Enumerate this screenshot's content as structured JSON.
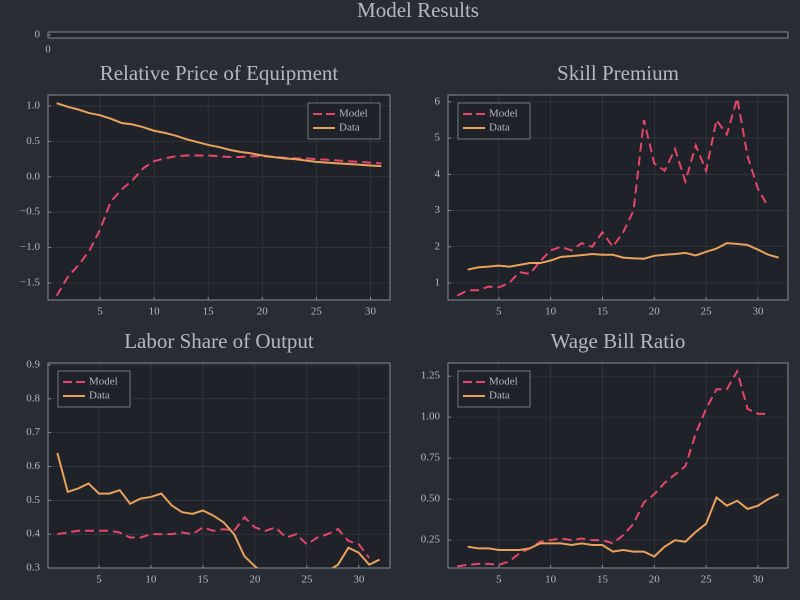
{
  "chart_data": [
    {
      "type": "line",
      "title": "Model Results",
      "xlim": [
        0,
        1
      ],
      "ylim": [
        -1,
        1
      ],
      "xticks": [
        0
      ],
      "yticks": [
        0
      ],
      "grid": false,
      "series": []
    },
    {
      "type": "line",
      "title": "Relative Price of Equipment",
      "legend": "upper right",
      "grid": true,
      "x": [
        1,
        2,
        3,
        4,
        5,
        6,
        7,
        8,
        9,
        10,
        11,
        12,
        13,
        14,
        15,
        16,
        17,
        18,
        19,
        20,
        21,
        22,
        23,
        24,
        25,
        26,
        27,
        28,
        29,
        30,
        31
      ],
      "xlim": [
        0.2,
        31.8
      ],
      "xticks": [
        5,
        10,
        15,
        20,
        25,
        30
      ],
      "ylim": [
        -1.74,
        1.155
      ],
      "yticks": [
        {
          "value": 1,
          "label": "1.0"
        },
        0.5,
        {
          "value": 0,
          "label": "0.0"
        },
        {
          "value": -0.5,
          "label": "−0.5"
        },
        {
          "value": -1,
          "label": "−1.0"
        },
        {
          "value": -1.5,
          "label": "−1.5"
        }
      ],
      "series": [
        {
          "name": "Model",
          "color": "#e5466a",
          "linestyle": "dashed",
          "values": [
            -1.68,
            -1.42,
            -1.25,
            -1.05,
            -0.75,
            -0.35,
            -0.18,
            -0.05,
            0.12,
            0.22,
            0.26,
            0.29,
            0.3,
            0.3,
            0.3,
            0.29,
            0.28,
            0.28,
            0.29,
            0.29,
            0.28,
            0.27,
            0.26,
            0.26,
            0.25,
            0.24,
            0.23,
            0.22,
            0.21,
            0.2,
            0.19
          ]
        },
        {
          "name": "Data",
          "color": "#e9a25c",
          "linestyle": "solid",
          "values": [
            1.04,
            0.99,
            0.95,
            0.9,
            0.87,
            0.82,
            0.76,
            0.74,
            0.7,
            0.65,
            0.62,
            0.58,
            0.53,
            0.49,
            0.45,
            0.42,
            0.38,
            0.35,
            0.33,
            0.3,
            0.28,
            0.26,
            0.25,
            0.23,
            0.21,
            0.2,
            0.19,
            0.18,
            0.17,
            0.16,
            0.15
          ]
        }
      ]
    },
    {
      "type": "line",
      "title": "Skill Premium",
      "legend": "upper left",
      "grid": true,
      "x": [
        1,
        2,
        3,
        4,
        5,
        6,
        7,
        8,
        9,
        10,
        11,
        12,
        13,
        14,
        15,
        16,
        17,
        18,
        19,
        20,
        21,
        22,
        23,
        24,
        25,
        26,
        27,
        28,
        29,
        30,
        31,
        32
      ],
      "xlim": [
        0.1,
        32.9
      ],
      "xticks": [
        5,
        10,
        15,
        20,
        25,
        30
      ],
      "ylim": [
        0.53,
        6.19
      ],
      "yticks": [
        1,
        2,
        3,
        4,
        5,
        6
      ],
      "series": [
        {
          "name": "Model",
          "color": "#e5466a",
          "linestyle": "dashed",
          "values": [
            0.65,
            0.8,
            0.8,
            0.9,
            0.88,
            1.0,
            1.3,
            1.25,
            1.6,
            1.9,
            2.0,
            1.9,
            2.1,
            2.0,
            2.4,
            2.0,
            2.4,
            3.0,
            5.5,
            4.3,
            4.1,
            4.7,
            3.8,
            4.8,
            4.1,
            5.5,
            5.1,
            6.1,
            4.5,
            3.6,
            3.1,
            null
          ]
        },
        {
          "name": "Data",
          "color": "#e9a25c",
          "linestyle": "solid",
          "values": [
            null,
            1.37,
            1.43,
            1.45,
            1.48,
            1.45,
            1.5,
            1.55,
            1.55,
            1.62,
            1.72,
            1.74,
            1.77,
            1.8,
            1.78,
            1.78,
            1.7,
            1.68,
            1.67,
            1.75,
            1.78,
            1.8,
            1.83,
            1.76,
            1.86,
            1.95,
            2.1,
            2.08,
            2.05,
            1.92,
            1.78,
            1.7
          ]
        }
      ]
    },
    {
      "type": "line",
      "title": "Labor Share of Output",
      "legend": "upper left",
      "grid": true,
      "x": [
        1,
        2,
        3,
        4,
        5,
        6,
        7,
        8,
        9,
        10,
        11,
        12,
        13,
        14,
        15,
        16,
        17,
        18,
        19,
        20,
        21,
        22,
        23,
        24,
        25,
        26,
        27,
        28,
        29,
        30,
        31,
        32
      ],
      "xlim": [
        0.1,
        33
      ],
      "xticks": [
        5,
        10,
        15,
        20,
        25,
        30
      ],
      "ylim": [
        0.3,
        0.906
      ],
      "yticks": [
        0.3,
        0.4,
        0.5,
        0.6,
        0.7,
        0.8,
        0.9
      ],
      "series": [
        {
          "name": "Model",
          "color": "#e5466a",
          "linestyle": "dashed",
          "values": [
            0.4,
            0.405,
            0.41,
            0.41,
            0.41,
            0.41,
            0.405,
            0.39,
            0.39,
            0.4,
            0.4,
            0.4,
            0.405,
            0.4,
            0.42,
            0.41,
            0.415,
            0.41,
            0.45,
            0.42,
            0.41,
            0.42,
            0.39,
            0.4,
            0.37,
            0.39,
            0.4,
            0.415,
            0.38,
            0.37,
            0.33,
            null
          ]
        },
        {
          "name": "Data",
          "color": "#e9a25c",
          "linestyle": "solid",
          "values": [
            0.64,
            0.525,
            0.535,
            0.55,
            0.52,
            0.52,
            0.53,
            0.49,
            0.505,
            0.51,
            0.52,
            0.485,
            0.465,
            0.46,
            0.47,
            0.455,
            0.435,
            0.4,
            0.335,
            0.305,
            0.28,
            0.27,
            0.27,
            0.27,
            0.27,
            0.28,
            0.29,
            0.31,
            0.36,
            0.345,
            0.31,
            0.325
          ]
        }
      ]
    },
    {
      "type": "line",
      "title": "Wage Bill Ratio",
      "legend": "upper left",
      "grid": true,
      "x": [
        1,
        2,
        3,
        4,
        5,
        6,
        7,
        8,
        9,
        10,
        11,
        12,
        13,
        14,
        15,
        16,
        17,
        18,
        19,
        20,
        21,
        22,
        23,
        24,
        25,
        26,
        27,
        28,
        29,
        30,
        31,
        32
      ],
      "xlim": [
        0.1,
        32.9
      ],
      "xticks": [
        5,
        10,
        15,
        20,
        25,
        30
      ],
      "ylim": [
        0.08,
        1.33
      ],
      "yticks": [
        0.25,
        {
          "value": 0.5,
          "label": "0.50"
        },
        0.75,
        {
          "value": 1,
          "label": "1.00"
        },
        1.25
      ],
      "series": [
        {
          "name": "Model",
          "color": "#e5466a",
          "linestyle": "dashed",
          "values": [
            0.09,
            0.1,
            0.105,
            0.105,
            0.1,
            0.12,
            0.17,
            0.2,
            0.24,
            0.25,
            0.26,
            0.25,
            0.26,
            0.25,
            0.25,
            0.23,
            0.28,
            0.35,
            0.48,
            0.53,
            0.6,
            0.65,
            0.7,
            0.9,
            1.05,
            1.17,
            1.17,
            1.28,
            1.05,
            1.02,
            1.02,
            null
          ]
        },
        {
          "name": "Data",
          "color": "#e9a25c",
          "linestyle": "solid",
          "values": [
            null,
            0.21,
            0.2,
            0.2,
            0.19,
            0.19,
            0.19,
            0.2,
            0.23,
            0.23,
            0.23,
            0.22,
            0.23,
            0.22,
            0.22,
            0.18,
            0.19,
            0.18,
            0.18,
            0.15,
            0.21,
            0.25,
            0.24,
            0.3,
            0.35,
            0.51,
            0.46,
            0.49,
            0.44,
            0.46,
            0.5,
            0.53
          ]
        }
      ]
    }
  ]
}
